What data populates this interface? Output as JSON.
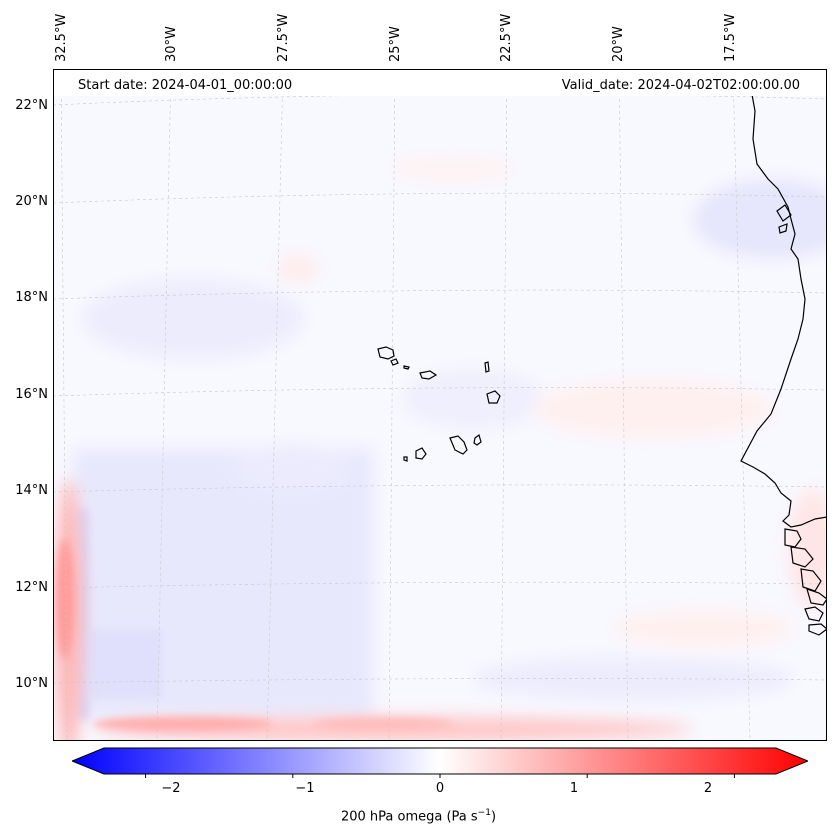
{
  "header": {
    "start_date": "Start date: 2024-04-01_00:00:00",
    "valid_date": "Valid_date: 2024-04-02T02:00:00.00"
  },
  "longitude_labels": [
    "32.5°W",
    "30°W",
    "27.5°W",
    "25°W",
    "22.5°W",
    "20°W",
    "17.5°W"
  ],
  "latitude_labels": [
    "22°N",
    "20°N",
    "18°N",
    "16°N",
    "14°N",
    "12°N",
    "10°N"
  ],
  "colorbar": {
    "ticks": [
      "−2",
      "−1",
      "0",
      "1",
      "2"
    ],
    "tick_values": [
      -2,
      -1,
      0,
      1,
      2
    ],
    "range": [
      -2.5,
      2.5
    ],
    "title_prefix": "200 hPa omega (Pa s",
    "title_exp": "−1",
    "title_suffix": ")",
    "colormap": "bwr",
    "color_min": "#0000ff",
    "color_mid": "#ffffff",
    "color_max": "#ff0000"
  },
  "colors": {
    "ocean_background": "#f7f7ff",
    "coastline": "#000000",
    "gridline": "#cccccc"
  }
}
